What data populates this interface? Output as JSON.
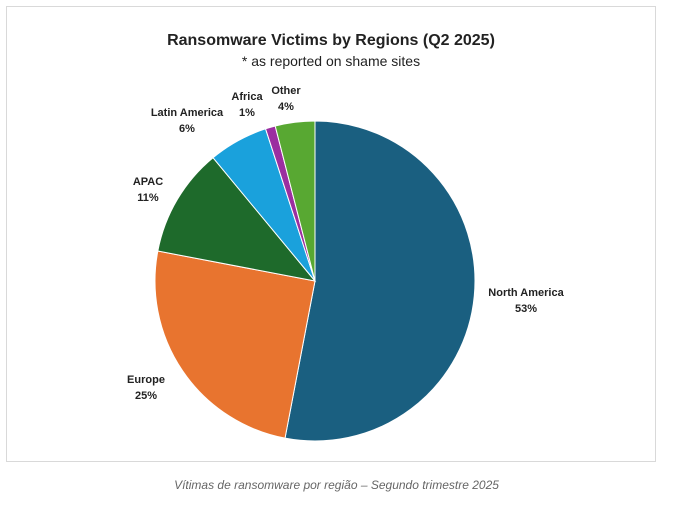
{
  "chart_data": {
    "type": "pie",
    "title": "Ransomware Victims by Regions (Q2 2025)",
    "subtitle": "* as reported on shame sites",
    "slices": [
      {
        "label": "North America",
        "value": 53,
        "display": "53%",
        "color": "#1a5f80"
      },
      {
        "label": "Europe",
        "value": 25,
        "display": "25%",
        "color": "#e8742f"
      },
      {
        "label": "APAC",
        "value": 11,
        "display": "11%",
        "color": "#1e6a2b"
      },
      {
        "label": "Latin America",
        "value": 6,
        "display": "6%",
        "color": "#1aa1dc"
      },
      {
        "label": "Africa",
        "value": 1,
        "display": "1%",
        "color": "#9b2ea0"
      },
      {
        "label": "Other",
        "value": 4,
        "display": "4%",
        "color": "#58a832"
      }
    ]
  },
  "caption": "Vítimas de ransomware por região – Segundo trimestre 2025"
}
